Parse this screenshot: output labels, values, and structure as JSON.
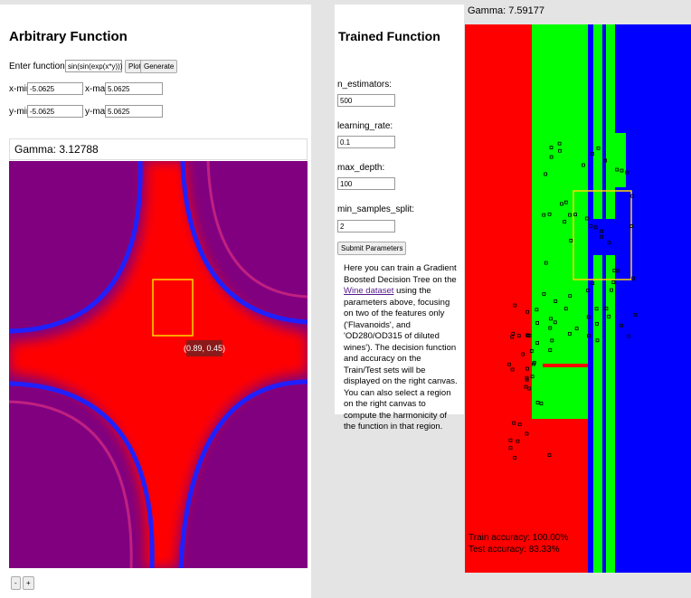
{
  "left_panel": {
    "title": "Arbitrary Function",
    "function_label": "Enter function f(x, y):",
    "function_value": "sin(sin(exp(x*y)))",
    "plot_button": "Plot",
    "generate_button": "Generate",
    "xmin_label": "x-min:",
    "xmin_value": "-5.0625",
    "xmax_label": "x-max:",
    "xmax_value": "5.0625",
    "ymin_label": "y-min:",
    "ymin_value": "-5.0625",
    "ymax_label": "y-max:",
    "ymax_value": "5.0625",
    "gamma": "Gamma: 3.12788",
    "tooltip": "(0.89, 0.45)",
    "zoom_out": "-",
    "zoom_in": "+"
  },
  "middle_panel": {
    "title": "Trained Function",
    "n_estimators_label": "n_estimators:",
    "n_estimators_value": "500",
    "learning_rate_label": "learning_rate:",
    "learning_rate_value": "0.1",
    "max_depth_label": "max_depth:",
    "max_depth_value": "100",
    "min_samples_split_label": "min_samples_split:",
    "min_samples_split_value": "2",
    "submit_button": "Submit Parameters",
    "text_before": "Here you can train a Gradient Boosted Decision Tree on the ",
    "link": "Wine dataset",
    "text_after": " using the parameters above, focusing on two of the features only ('Flavanoids', and 'OD280/OD315 of diluted wines'). The decision function and accuracy on the Train/Test sets will be displayed on the right canvas. You can also select a region on the right canvas to compute the harmonicity of the function in that region."
  },
  "right_panel": {
    "gamma": "Gamma: 7.59177",
    "train_accuracy": "Train accuracy: 100.00%",
    "test_accuracy": "Test accuracy: 83.33%"
  }
}
